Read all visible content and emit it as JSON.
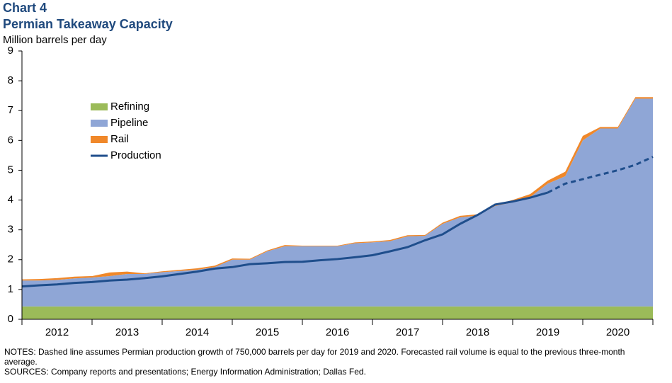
{
  "chart_data": {
    "type": "stacked-area-line",
    "label": "Chart 4",
    "title": "Permian Takeaway Capacity",
    "y_label": "Million barrels per day",
    "x": [
      2012,
      2012.25,
      2012.5,
      2012.75,
      2013,
      2013.25,
      2013.5,
      2013.75,
      2014,
      2014.25,
      2014.5,
      2014.75,
      2015,
      2015.25,
      2015.5,
      2015.75,
      2016,
      2016.25,
      2016.5,
      2016.75,
      2017,
      2017.25,
      2017.5,
      2017.75,
      2018,
      2018.25,
      2018.5,
      2018.75,
      2019,
      2019.25,
      2019.5,
      2019.75,
      2020,
      2020.25,
      2020.5,
      2020.75,
      2021
    ],
    "xlim": [
      2012,
      2021
    ],
    "xticks": [
      {
        "value": 2012.5,
        "label": "2012"
      },
      {
        "value": 2013.5,
        "label": "2013"
      },
      {
        "value": 2014.5,
        "label": "2014"
      },
      {
        "value": 2015.5,
        "label": "2015"
      },
      {
        "value": 2016.5,
        "label": "2016"
      },
      {
        "value": 2017.5,
        "label": "2017"
      },
      {
        "value": 2018.5,
        "label": "2018"
      },
      {
        "value": 2019.5,
        "label": "2019"
      },
      {
        "value": 2020.5,
        "label": "2020"
      }
    ],
    "ylim": [
      0,
      9
    ],
    "yticks": [
      0,
      1,
      2,
      3,
      4,
      5,
      6,
      7,
      8,
      9
    ],
    "grid": false,
    "series": [
      {
        "name": "Refining",
        "color": "#9bbb59",
        "kind": "area",
        "values": [
          0.43,
          0.43,
          0.43,
          0.43,
          0.43,
          0.43,
          0.43,
          0.43,
          0.43,
          0.43,
          0.43,
          0.43,
          0.43,
          0.43,
          0.43,
          0.43,
          0.43,
          0.43,
          0.43,
          0.43,
          0.43,
          0.43,
          0.43,
          0.43,
          0.43,
          0.43,
          0.43,
          0.43,
          0.43,
          0.43,
          0.43,
          0.43,
          0.43,
          0.43,
          0.43,
          0.43,
          0.43
        ]
      },
      {
        "name": "Pipeline",
        "color": "#8fa6d6",
        "kind": "area",
        "values": [
          0.87,
          0.87,
          0.89,
          0.94,
          0.97,
          1.02,
          1.09,
          1.09,
          1.15,
          1.19,
          1.23,
          1.32,
          1.57,
          1.57,
          1.85,
          2.02,
          2.02,
          2.02,
          2.02,
          2.12,
          2.15,
          2.19,
          2.35,
          2.37,
          2.77,
          2.99,
          3.05,
          3.37,
          3.49,
          3.67,
          4.12,
          4.37,
          5.57,
          5.97,
          5.97,
          6.97,
          6.97
        ]
      },
      {
        "name": "Rail",
        "color": "#f0882a",
        "kind": "area",
        "values": [
          0.04,
          0.05,
          0.06,
          0.06,
          0.05,
          0.12,
          0.08,
          0.02,
          0.03,
          0.04,
          0.05,
          0.05,
          0.04,
          0.03,
          0.03,
          0.04,
          0.02,
          0.02,
          0.02,
          0.03,
          0.03,
          0.04,
          0.04,
          0.03,
          0.04,
          0.05,
          0.04,
          0.05,
          0.08,
          0.1,
          0.1,
          0.15,
          0.15,
          0.05,
          0.05,
          0.05,
          0.05
        ]
      },
      {
        "name": "Production",
        "color": "#1f4e8c",
        "kind": "line",
        "values": [
          1.1,
          1.14,
          1.17,
          1.22,
          1.25,
          1.3,
          1.33,
          1.38,
          1.44,
          1.52,
          1.6,
          1.7,
          1.75,
          1.85,
          1.88,
          1.92,
          1.93,
          1.98,
          2.02,
          2.08,
          2.15,
          2.28,
          2.42,
          2.65,
          2.85,
          3.2,
          3.5,
          3.85,
          3.95,
          4.08,
          4.25,
          null,
          null,
          null,
          null,
          null,
          null
        ],
        "forecast_values": [
          null,
          null,
          null,
          null,
          null,
          null,
          null,
          null,
          null,
          null,
          null,
          null,
          null,
          null,
          null,
          null,
          null,
          null,
          null,
          null,
          null,
          null,
          null,
          null,
          null,
          null,
          null,
          null,
          null,
          null,
          4.25,
          4.55,
          4.7,
          4.85,
          5.0,
          5.18,
          5.45
        ]
      }
    ],
    "legend_position": "upper-left",
    "notes": "NOTES: Dashed line assumes Permian production growth of 750,000 barrels per day for 2019 and 2020. Forecasted rail volume is equal to the previous three-month average.",
    "sources": "SOURCES: Company reports and presentations; Energy Information Administration; Dallas Fed."
  }
}
